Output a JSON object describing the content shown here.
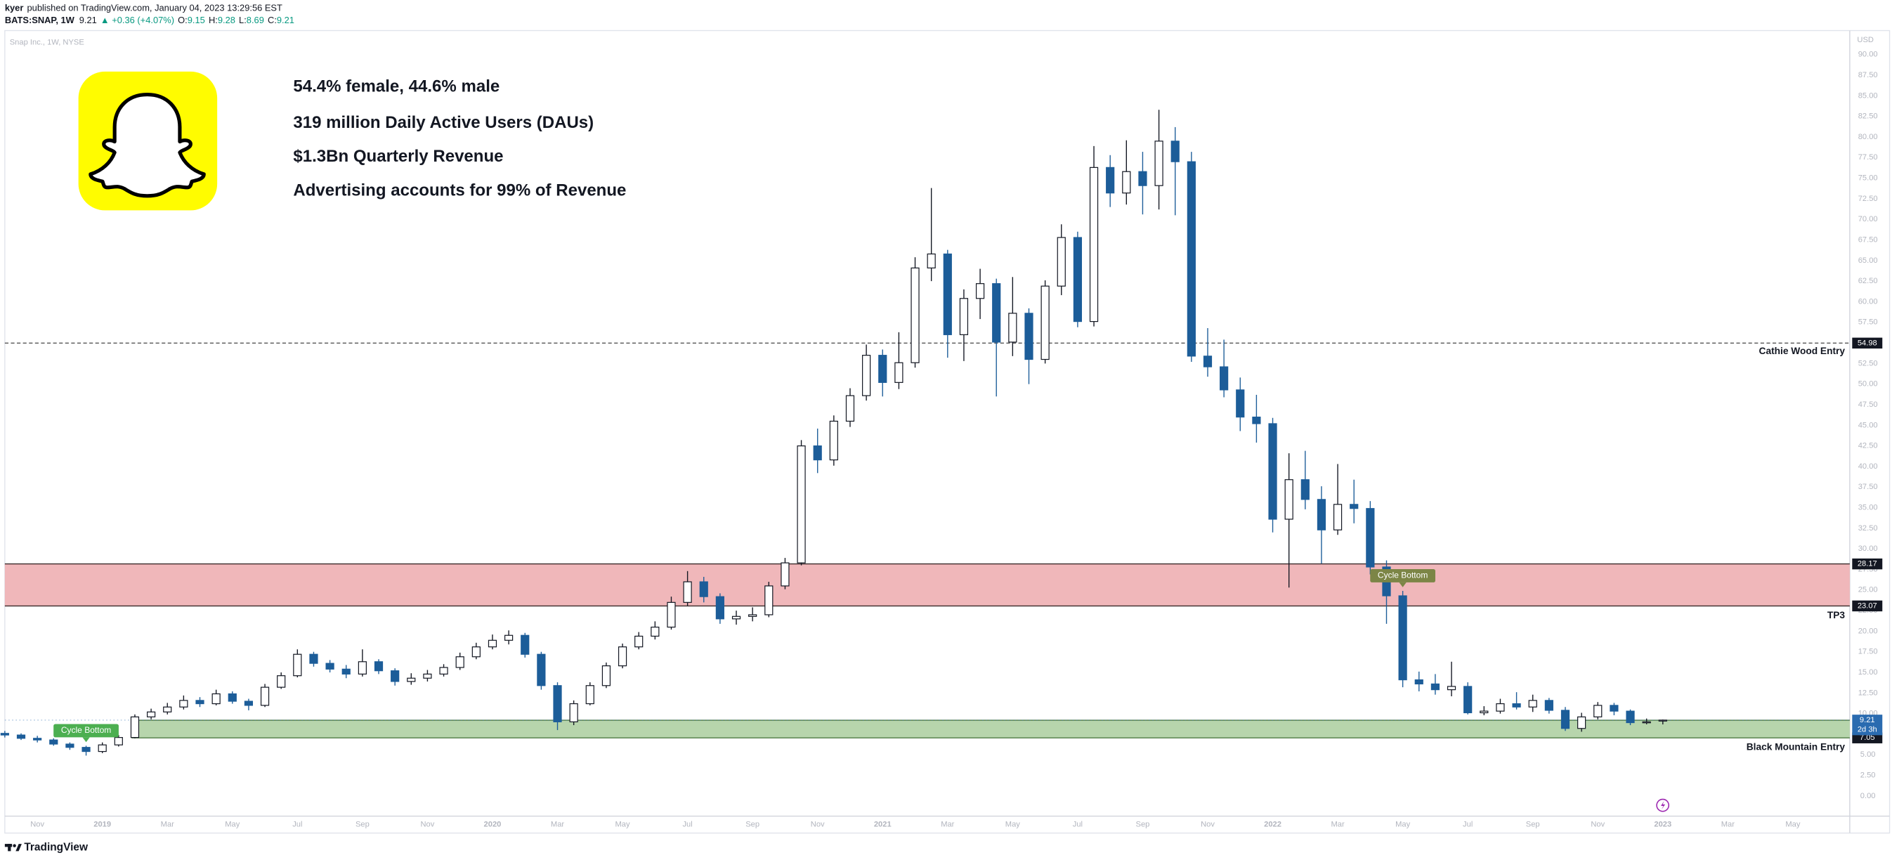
{
  "header": {
    "author": "kyer",
    "published": "published on TradingView.com, January 04, 2023 13:29:56 EST",
    "symbol": "BATS:SNAP, 1W",
    "last": 9.21,
    "change": "▲ +0.36 (+4.07%)",
    "ohlc": [
      {
        "key": "O:",
        "value": 9.15
      },
      {
        "key": "H:",
        "value": 9.28
      },
      {
        "key": "L:",
        "value": 8.69
      },
      {
        "key": "C:",
        "value": 9.21
      }
    ]
  },
  "footer": {
    "brand": "TradingView"
  },
  "chart_data": {
    "type": "candlestick",
    "watermark": "Snap Inc., 1W, NYSE",
    "currency": "USD",
    "notes": [
      "54.4% female, 44.6% male",
      "319 million Daily Active Users (DAUs)",
      "$1.3Bn Quarterly Revenue",
      "Advertising accounts for 99% of Revenue"
    ],
    "x": [
      -3,
      -2.5,
      -2,
      -1.5,
      -1,
      -0.5,
      0,
      0.5,
      1,
      1.5,
      2,
      2.5,
      3,
      3.5,
      4,
      4.5,
      5,
      5.5,
      6,
      6.5,
      7,
      7.5,
      8,
      8.5,
      9,
      9.5,
      10,
      10.5,
      11,
      11.5,
      12,
      12.5,
      13,
      13.5,
      14,
      14.5,
      15,
      15.5,
      16,
      16.5,
      17,
      17.5,
      18,
      18.5,
      19,
      19.5,
      20,
      20.5,
      21,
      21.5,
      22,
      22.5,
      23,
      23.5,
      24,
      24.5,
      25,
      25.5,
      26,
      26.5,
      27,
      27.5,
      28,
      28.5,
      29,
      29.5,
      30,
      30.5,
      31,
      31.5,
      32,
      32.5,
      33,
      33.5,
      34,
      34.5,
      35,
      35.5,
      36,
      36.5,
      37,
      37.5,
      38,
      38.5,
      39,
      39.5,
      40,
      40.5,
      41,
      41.5,
      42,
      42.5,
      43,
      43.5,
      44,
      44.5,
      45,
      45.5,
      46,
      46.5,
      47,
      47.5,
      48
    ],
    "open": [
      7.6,
      7.4,
      7.0,
      6.8,
      6.3,
      5.9,
      5.4,
      6.2,
      7.1,
      9.6,
      10.2,
      10.8,
      11.6,
      11.2,
      12.4,
      11.5,
      11.0,
      13.2,
      14.6,
      17.2,
      16.1,
      15.4,
      14.8,
      16.3,
      15.2,
      13.9,
      14.3,
      14.8,
      15.6,
      16.9,
      18.1,
      18.9,
      19.5,
      17.2,
      13.4,
      9.0,
      11.2,
      13.4,
      15.8,
      18.1,
      19.4,
      20.5,
      23.5,
      26.0,
      24.2,
      21.5,
      21.8,
      22.0,
      25.5,
      28.3,
      42.5,
      40.8,
      45.5,
      48.6,
      53.5,
      50.2,
      52.6,
      64.1,
      65.8,
      56.0,
      60.4,
      62.2,
      55.1,
      58.6,
      53.0,
      61.9,
      67.8,
      57.6,
      76.3,
      73.2,
      75.8,
      74.1,
      79.5,
      77.0,
      53.4,
      52.1,
      49.3,
      46.0,
      45.2,
      33.6,
      38.4,
      36.0,
      32.3,
      35.4,
      34.9,
      27.8,
      24.3,
      14.1,
      13.6,
      12.9,
      13.3,
      10.1,
      10.3,
      11.2,
      10.8,
      11.6,
      10.4,
      8.2,
      9.6,
      11.0,
      10.3,
      8.9,
      9.15
    ],
    "high": [
      7.9,
      7.6,
      7.3,
      7.0,
      6.5,
      6.1,
      6.5,
      7.4,
      9.9,
      10.6,
      11.3,
      12.2,
      12.0,
      12.9,
      12.7,
      11.8,
      13.6,
      15.0,
      17.8,
      17.5,
      16.5,
      15.9,
      17.8,
      16.6,
      15.5,
      14.9,
      15.3,
      16.0,
      17.4,
      18.6,
      19.6,
      20.1,
      19.8,
      17.5,
      13.8,
      11.6,
      13.8,
      16.2,
      18.5,
      19.9,
      21.2,
      24.2,
      27.3,
      26.6,
      24.6,
      22.5,
      22.9,
      26.0,
      28.9,
      43.2,
      44.6,
      46.2,
      49.5,
      54.8,
      54.2,
      56.3,
      65.4,
      73.8,
      66.3,
      61.5,
      64.0,
      62.8,
      63.0,
      59.2,
      62.6,
      69.4,
      68.5,
      78.9,
      77.8,
      79.6,
      78.2,
      83.3,
      81.2,
      78.2,
      56.8,
      55.4,
      50.8,
      48.7,
      45.9,
      41.6,
      41.9,
      37.6,
      40.3,
      38.4,
      35.8,
      28.6,
      24.9,
      15.1,
      14.8,
      16.3,
      13.8,
      10.9,
      11.8,
      12.6,
      12.3,
      11.9,
      10.8,
      10.1,
      11.4,
      11.3,
      10.5,
      9.4,
      9.28
    ],
    "low": [
      7.1,
      6.8,
      6.5,
      6.1,
      5.6,
      4.9,
      5.2,
      6.0,
      7.0,
      9.3,
      9.9,
      10.5,
      10.8,
      11.0,
      11.2,
      10.4,
      10.8,
      13.0,
      14.4,
      15.7,
      15.0,
      14.3,
      14.5,
      14.8,
      13.4,
      13.5,
      13.9,
      14.5,
      15.3,
      16.6,
      17.8,
      18.4,
      16.8,
      12.9,
      8.0,
      8.6,
      11.0,
      13.1,
      15.5,
      17.8,
      19.0,
      20.2,
      23.1,
      23.5,
      20.9,
      20.8,
      21.2,
      21.7,
      25.1,
      28.0,
      39.2,
      40.1,
      44.8,
      48.0,
      48.5,
      49.4,
      52.0,
      62.5,
      53.2,
      52.8,
      57.9,
      48.5,
      53.4,
      50.0,
      52.5,
      60.8,
      56.9,
      57.0,
      71.5,
      71.8,
      70.6,
      71.2,
      70.5,
      52.7,
      50.9,
      48.4,
      44.3,
      42.9,
      32.0,
      25.3,
      34.8,
      28.2,
      31.7,
      33.1,
      26.9,
      20.9,
      13.2,
      12.7,
      12.3,
      12.1,
      9.9,
      9.8,
      10.0,
      10.5,
      10.2,
      10.0,
      7.9,
      7.8,
      9.3,
      9.8,
      8.6,
      8.7,
      8.69
    ],
    "close": [
      7.4,
      7.0,
      6.8,
      6.3,
      5.9,
      5.4,
      6.2,
      7.1,
      9.6,
      10.2,
      10.8,
      11.6,
      11.2,
      12.4,
      11.5,
      11.0,
      13.2,
      14.6,
      17.2,
      16.1,
      15.4,
      14.8,
      16.3,
      15.2,
      13.9,
      14.3,
      14.8,
      15.6,
      16.9,
      18.1,
      18.9,
      19.5,
      17.2,
      13.4,
      9.0,
      11.2,
      13.4,
      15.8,
      18.1,
      19.4,
      20.5,
      23.5,
      26.0,
      24.2,
      21.5,
      21.8,
      22.0,
      25.5,
      28.3,
      42.5,
      40.8,
      45.5,
      48.6,
      53.5,
      50.2,
      52.6,
      64.1,
      65.8,
      56.0,
      60.4,
      62.2,
      55.1,
      58.6,
      53.0,
      61.9,
      67.8,
      57.6,
      76.3,
      73.2,
      75.8,
      74.1,
      79.5,
      77.0,
      53.4,
      52.1,
      49.3,
      46.0,
      45.2,
      33.6,
      38.4,
      36.0,
      32.3,
      35.4,
      34.9,
      27.8,
      24.3,
      14.1,
      13.6,
      12.9,
      13.3,
      10.1,
      10.3,
      11.2,
      10.8,
      11.6,
      10.4,
      8.2,
      9.6,
      11.0,
      10.3,
      8.9,
      9.0,
      9.21
    ],
    "up_color": "#ffffff",
    "down_color": "#1c5d99",
    "xlim": [
      -3,
      53.75
    ],
    "xticks": [
      {
        "value": -2,
        "label": "Nov"
      },
      {
        "value": 0,
        "label": "2019"
      },
      {
        "value": 2,
        "label": "Mar"
      },
      {
        "value": 4,
        "label": "May"
      },
      {
        "value": 6,
        "label": "Jul"
      },
      {
        "value": 8,
        "label": "Sep"
      },
      {
        "value": 10,
        "label": "Nov"
      },
      {
        "value": 12,
        "label": "2020"
      },
      {
        "value": 14,
        "label": "Mar"
      },
      {
        "value": 16,
        "label": "May"
      },
      {
        "value": 18,
        "label": "Jul"
      },
      {
        "value": 20,
        "label": "Sep"
      },
      {
        "value": 22,
        "label": "Nov"
      },
      {
        "value": 24,
        "label": "2021"
      },
      {
        "value": 26,
        "label": "Mar"
      },
      {
        "value": 28,
        "label": "May"
      },
      {
        "value": 30,
        "label": "Jul"
      },
      {
        "value": 32,
        "label": "Sep"
      },
      {
        "value": 34,
        "label": "Nov"
      },
      {
        "value": 36,
        "label": "2022"
      },
      {
        "value": 38,
        "label": "Mar"
      },
      {
        "value": 40,
        "label": "May"
      },
      {
        "value": 42,
        "label": "Jul"
      },
      {
        "value": 44,
        "label": "Sep"
      },
      {
        "value": 46,
        "label": "Nov"
      },
      {
        "value": 48,
        "label": "2023"
      },
      {
        "value": 50,
        "label": "Mar"
      },
      {
        "value": 52,
        "label": "May"
      }
    ],
    "ylim": [
      -2.45,
      92.92
    ],
    "yticks": [
      {
        "value": 0,
        "label": "0.00"
      },
      {
        "value": 2.5,
        "label": "2.50"
      },
      {
        "value": 5,
        "label": "5.00"
      },
      {
        "value": 7.5,
        "label": "7.50"
      },
      {
        "value": 10,
        "label": "10.00"
      },
      {
        "value": 12.5,
        "label": "12.50"
      },
      {
        "value": 15,
        "label": "15.00"
      },
      {
        "value": 17.5,
        "label": "17.50"
      },
      {
        "value": 20,
        "label": "20.00"
      },
      {
        "value": 22.5,
        "label": "22.50"
      },
      {
        "value": 25,
        "label": "25.00"
      },
      {
        "value": 27.5,
        "label": "27.50"
      },
      {
        "value": 30,
        "label": "30.00"
      },
      {
        "value": 32.5,
        "label": "32.50"
      },
      {
        "value": 35,
        "label": "35.00"
      },
      {
        "value": 37.5,
        "label": "37.50"
      },
      {
        "value": 40,
        "label": "40.00"
      },
      {
        "value": 42.5,
        "label": "42.50"
      },
      {
        "value": 45,
        "label": "45.00"
      },
      {
        "value": 47.5,
        "label": "47.50"
      },
      {
        "value": 50,
        "label": "50.00"
      },
      {
        "value": 52.5,
        "label": "52.50"
      },
      {
        "value": 55,
        "label": "55.00"
      },
      {
        "value": 57.5,
        "label": "57.50"
      },
      {
        "value": 60,
        "label": "60.00"
      },
      {
        "value": 62.5,
        "label": "62.50"
      },
      {
        "value": 65,
        "label": "65.00"
      },
      {
        "value": 67.5,
        "label": "67.50"
      },
      {
        "value": 70,
        "label": "70.00"
      },
      {
        "value": 72.5,
        "label": "72.50"
      },
      {
        "value": 75,
        "label": "75.00"
      },
      {
        "value": 77.5,
        "label": "77.50"
      },
      {
        "value": 80,
        "label": "80.00"
      },
      {
        "value": 82.5,
        "label": "82.50"
      },
      {
        "value": 85,
        "label": "85.00"
      },
      {
        "value": 87.5,
        "label": "87.50"
      },
      {
        "value": 90,
        "label": "90.00"
      }
    ],
    "grid": false,
    "levels": [
      {
        "name": "Cathie Wood Entry",
        "value": 54.98,
        "color": "#555555"
      }
    ],
    "zones": [
      {
        "name": "TP3",
        "low": 23.07,
        "high": 28.17,
        "color": "#f0b7ba",
        "line_color": "#3a2a2a"
      },
      {
        "name": "Black Mountain Entry",
        "low": 7.05,
        "high": 9.2,
        "start": 0.9,
        "color": "#b7d5ac",
        "line_color": "#4f7a45"
      }
    ],
    "markers": [
      {
        "label": "Cycle Bottom",
        "x": -0.5,
        "color": "#4caf50"
      },
      {
        "label": "Cycle Bottom",
        "x": 40,
        "color": "#7c8546"
      }
    ],
    "last_price": 9.21,
    "countdown": "2d 3h",
    "last_color": "#2a6bb0"
  }
}
